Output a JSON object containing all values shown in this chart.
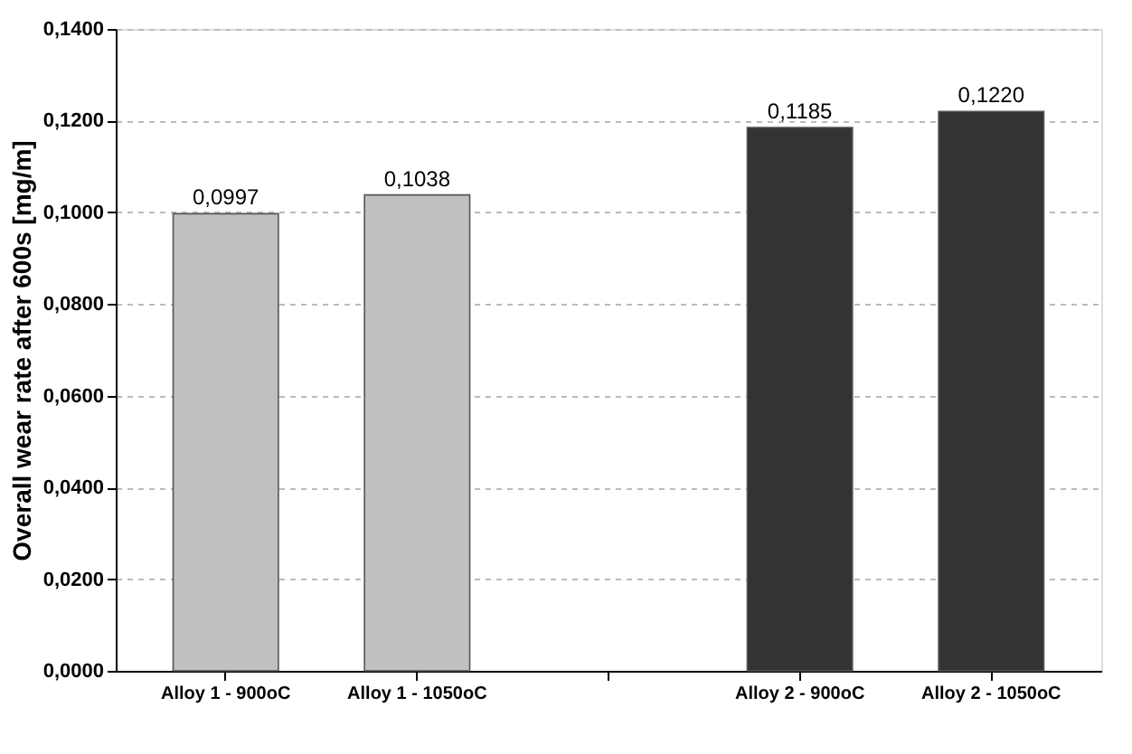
{
  "chart_data": {
    "type": "bar",
    "ylabel": "Overall wear rate after 600s   [mg/m]",
    "categories": [
      "Alloy 1 - 900oC",
      "Alloy 1 - 1050oC",
      null,
      "Alloy 2 - 900oC",
      "Alloy 2 - 1050oC"
    ],
    "values": [
      0.0997,
      0.1038,
      null,
      0.1185,
      0.122
    ],
    "colors": [
      "#c0c0c0",
      "#c0c0c0",
      null,
      "#333333",
      "#333333"
    ],
    "value_labels": [
      "0,0997",
      "0,1038",
      null,
      "0,1185",
      "0,1220"
    ],
    "ylim": [
      0,
      0.14
    ],
    "yticks": [
      {
        "value": 0,
        "label": "0,0000"
      },
      {
        "value": 0.02,
        "label": "0,0200"
      },
      {
        "value": 0.04,
        "label": "0,0400"
      },
      {
        "value": 0.06,
        "label": "0,0600"
      },
      {
        "value": 0.08,
        "label": "0,0800"
      },
      {
        "value": 0.1,
        "label": "0,1000"
      },
      {
        "value": 0.12,
        "label": "0,1200"
      },
      {
        "value": 0.14,
        "label": "0,1400"
      }
    ],
    "grid": "y"
  }
}
